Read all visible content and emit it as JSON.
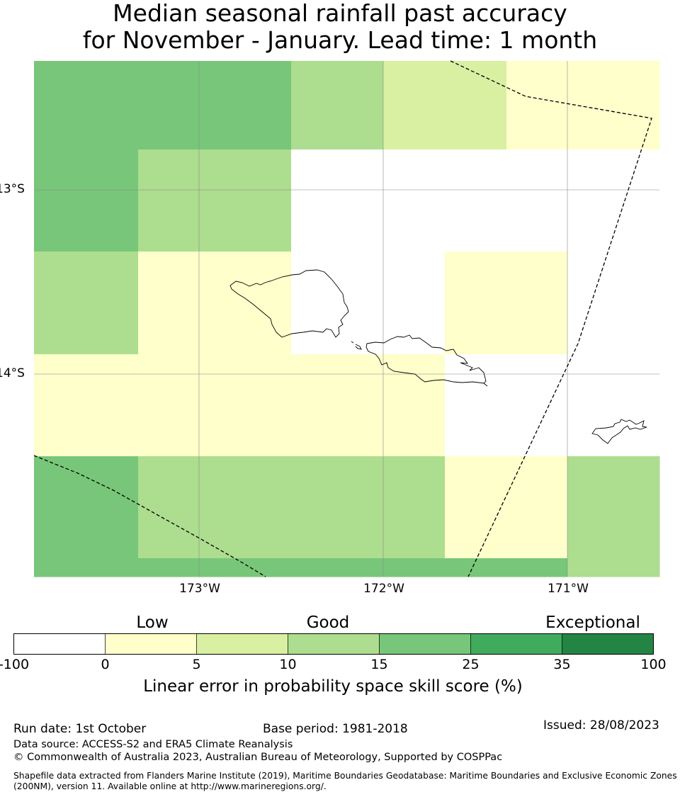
{
  "title": {
    "line1": "Median seasonal rainfall past accuracy",
    "line2": "for November - January. Lead time: 1 month"
  },
  "map": {
    "lat_labels": [
      "13°S",
      "14°S"
    ],
    "lon_labels": [
      "173°W",
      "172°W",
      "171°W"
    ],
    "regions": [
      "Samoa (Savai'i)",
      "Samoa (Upolu)",
      "American Samoa (Tutuila)"
    ],
    "boundary_style": "dashed",
    "grid": [
      [
        "15-25",
        "15-25",
        "15-25",
        "10-15",
        "5-10",
        "5-10",
        "0-5",
        "0-5",
        "0-5"
      ],
      [
        "15-25",
        "10-15",
        "10-15",
        "none",
        "none",
        "none",
        "none",
        "none",
        "none"
      ],
      [
        "10-15",
        "0-5",
        "0-5",
        "none",
        "none",
        "0-5",
        "0-5",
        "none",
        "none"
      ],
      [
        "0-5",
        "0-5",
        "0-5",
        "0-5",
        "0-5",
        "none",
        "none",
        "none",
        "none"
      ],
      [
        "15-25",
        "10-15",
        "10-15",
        "10-15",
        "10-15",
        "0-5",
        "0-5",
        "10-15",
        "10-15"
      ],
      [
        "15-25",
        "15-25",
        "15-25",
        "15-25",
        "15-25",
        "15-25",
        "15-25",
        "10-15",
        "10-15"
      ]
    ]
  },
  "colorbar": {
    "categories": [
      "Low",
      "Good",
      "Exceptional"
    ],
    "ticks": [
      "-100",
      "0",
      "5",
      "10",
      "15",
      "25",
      "35",
      "100"
    ],
    "colors": [
      "#ffffff",
      "#ffffcc",
      "#d9f0a3",
      "#addd8e",
      "#78c679",
      "#41ab5d",
      "#238443"
    ],
    "label": "Linear error in probability space skill score (%)"
  },
  "footer": {
    "run_date": "Run date: 1st October",
    "base_period": "Base period: 1981-2018",
    "issued": "Issued: 28/08/2023",
    "data_source": "Data source: ACCESS-S2 and ERA5 Climate Reanalysis",
    "copyright": "© Commonwealth of Australia 2023, Australian Bureau of Meteorology, Supported by COSPPac",
    "shapefile_line1": "Shapefile data extracted from Flanders Marine Institute (2019), Maritime Boundaries Geodatabase: Maritime Boundaries and Exclusive Economic Zones",
    "shapefile_line2": "(200NM), version 11. Available online at http://www.marineregions.org/."
  }
}
